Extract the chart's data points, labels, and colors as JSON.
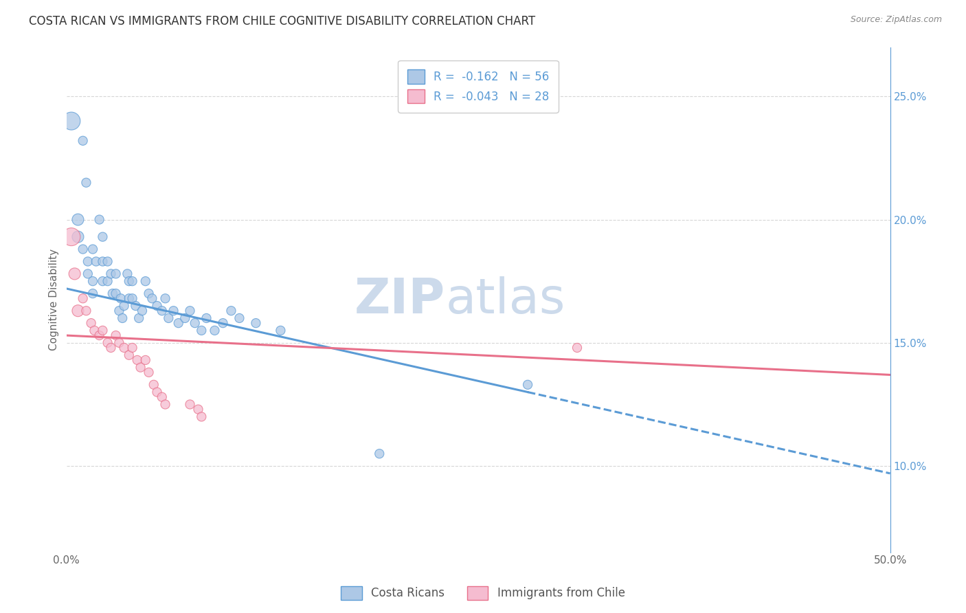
{
  "title": "COSTA RICAN VS IMMIGRANTS FROM CHILE COGNITIVE DISABILITY CORRELATION CHART",
  "source": "Source: ZipAtlas.com",
  "ylabel": "Cognitive Disability",
  "xlim": [
    0.0,
    0.5
  ],
  "ylim": [
    0.065,
    0.27
  ],
  "right_yticks": [
    0.1,
    0.15,
    0.2,
    0.25
  ],
  "right_yticklabels": [
    "10.0%",
    "15.0%",
    "20.0%",
    "25.0%"
  ],
  "xticks": [
    0.0,
    0.1,
    0.2,
    0.3,
    0.4,
    0.5
  ],
  "xticklabels": [
    "0.0%",
    "",
    "",
    "",
    "",
    "50.0%"
  ],
  "legend_r1": "R =  -0.162   N = 56",
  "legend_r2": "R =  -0.043   N = 28",
  "watermark_zip": "ZIP",
  "watermark_atlas": "atlas",
  "blue_color": "#adc8e6",
  "pink_color": "#f5bcd0",
  "blue_line_color": "#5b9bd5",
  "pink_line_color": "#e8708a",
  "blue_scatter": [
    [
      0.003,
      0.24
    ],
    [
      0.01,
      0.232
    ],
    [
      0.007,
      0.2
    ],
    [
      0.012,
      0.215
    ],
    [
      0.007,
      0.193
    ],
    [
      0.01,
      0.188
    ],
    [
      0.013,
      0.183
    ],
    [
      0.016,
      0.188
    ],
    [
      0.013,
      0.178
    ],
    [
      0.016,
      0.175
    ],
    [
      0.018,
      0.183
    ],
    [
      0.016,
      0.17
    ],
    [
      0.02,
      0.2
    ],
    [
      0.022,
      0.193
    ],
    [
      0.022,
      0.183
    ],
    [
      0.022,
      0.175
    ],
    [
      0.025,
      0.183
    ],
    [
      0.025,
      0.175
    ],
    [
      0.027,
      0.178
    ],
    [
      0.028,
      0.17
    ],
    [
      0.03,
      0.178
    ],
    [
      0.03,
      0.17
    ],
    [
      0.032,
      0.163
    ],
    [
      0.033,
      0.168
    ],
    [
      0.034,
      0.16
    ],
    [
      0.035,
      0.165
    ],
    [
      0.037,
      0.178
    ],
    [
      0.038,
      0.175
    ],
    [
      0.038,
      0.168
    ],
    [
      0.04,
      0.175
    ],
    [
      0.04,
      0.168
    ],
    [
      0.042,
      0.165
    ],
    [
      0.044,
      0.16
    ],
    [
      0.046,
      0.163
    ],
    [
      0.048,
      0.175
    ],
    [
      0.05,
      0.17
    ],
    [
      0.052,
      0.168
    ],
    [
      0.055,
      0.165
    ],
    [
      0.058,
      0.163
    ],
    [
      0.06,
      0.168
    ],
    [
      0.062,
      0.16
    ],
    [
      0.065,
      0.163
    ],
    [
      0.068,
      0.158
    ],
    [
      0.072,
      0.16
    ],
    [
      0.075,
      0.163
    ],
    [
      0.078,
      0.158
    ],
    [
      0.082,
      0.155
    ],
    [
      0.085,
      0.16
    ],
    [
      0.09,
      0.155
    ],
    [
      0.095,
      0.158
    ],
    [
      0.1,
      0.163
    ],
    [
      0.105,
      0.16
    ],
    [
      0.115,
      0.158
    ],
    [
      0.13,
      0.155
    ],
    [
      0.19,
      0.105
    ],
    [
      0.28,
      0.133
    ]
  ],
  "pink_scatter": [
    [
      0.003,
      0.193
    ],
    [
      0.005,
      0.178
    ],
    [
      0.007,
      0.163
    ],
    [
      0.01,
      0.168
    ],
    [
      0.012,
      0.163
    ],
    [
      0.015,
      0.158
    ],
    [
      0.017,
      0.155
    ],
    [
      0.02,
      0.153
    ],
    [
      0.022,
      0.155
    ],
    [
      0.025,
      0.15
    ],
    [
      0.027,
      0.148
    ],
    [
      0.03,
      0.153
    ],
    [
      0.032,
      0.15
    ],
    [
      0.035,
      0.148
    ],
    [
      0.038,
      0.145
    ],
    [
      0.04,
      0.148
    ],
    [
      0.043,
      0.143
    ],
    [
      0.045,
      0.14
    ],
    [
      0.048,
      0.143
    ],
    [
      0.05,
      0.138
    ],
    [
      0.053,
      0.133
    ],
    [
      0.055,
      0.13
    ],
    [
      0.058,
      0.128
    ],
    [
      0.06,
      0.125
    ],
    [
      0.075,
      0.125
    ],
    [
      0.08,
      0.123
    ],
    [
      0.082,
      0.12
    ],
    [
      0.31,
      0.148
    ]
  ],
  "blue_trend_start_x": 0.0,
  "blue_trend_start_y": 0.172,
  "blue_trend_solid_end_x": 0.28,
  "blue_trend_dash_end_x": 0.5,
  "blue_trend_end_y": 0.097,
  "pink_trend_start_x": 0.0,
  "pink_trend_start_y": 0.153,
  "pink_trend_end_x": 0.5,
  "pink_trend_end_y": 0.137,
  "blue_scatter_size": 90,
  "pink_scatter_size": 90,
  "background_color": "#ffffff",
  "grid_color": "#cccccc",
  "title_fontsize": 12,
  "axis_label_fontsize": 11,
  "tick_fontsize": 11,
  "legend_fontsize": 12,
  "watermark_color": "#ccdaeb",
  "watermark_fontsize_zip": 52,
  "watermark_fontsize_atlas": 52
}
